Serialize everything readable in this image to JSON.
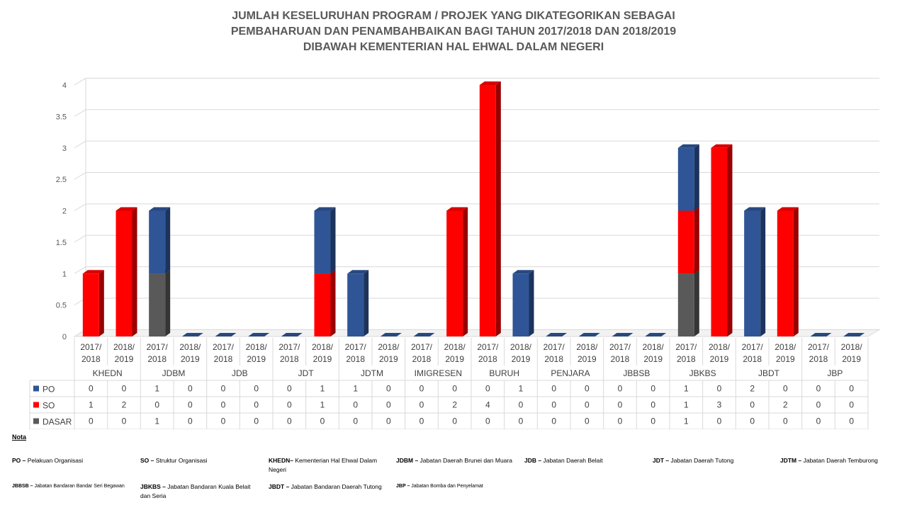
{
  "title_lines": [
    "JUMLAH KESELURUHAN PROGRAM / PROJEK YANG DIKATEGORIKAN SEBAGAI",
    "PEMBAHARUAN DAN PENAMBAHBAIKAN BAGI TAHUN 2017/2018 DAN 2018/2019",
    "DIBAWAH KEMENTERIAN HAL EHWAL DALAM NEGERI"
  ],
  "chart_data": {
    "type": "bar",
    "stacked": true,
    "three_d": true,
    "title": "JUMLAH KESELURUHAN PROGRAM / PROJEK YANG DIKATEGORIKAN SEBAGAI PEMBAHARUAN DAN PENAMBAHBAIKAN BAGI TAHUN 2017/2018 DAN 2018/2019 DIBAWAH KEMENTERIAN HAL EHWAL DALAM NEGERI",
    "groups": [
      "KHEDN",
      "JDBM",
      "JDB",
      "JDT",
      "JDTM",
      "IMIGRESEN",
      "BURUH",
      "PENJARA",
      "JBBSB",
      "JBKBS",
      "JBDT",
      "JBP"
    ],
    "subcategories": [
      "2017/2018",
      "2018/2019"
    ],
    "ylim": [
      0,
      4
    ],
    "yticks": [
      "0",
      "0.5",
      "1",
      "1.5",
      "2",
      "2.5",
      "3",
      "3.5",
      "4"
    ],
    "grid": true,
    "legend": "data-table",
    "series": [
      {
        "name": "PO",
        "color": "#2f5597",
        "values": [
          0,
          0,
          1,
          0,
          0,
          0,
          0,
          1,
          1,
          0,
          0,
          0,
          0,
          1,
          0,
          0,
          0,
          0,
          1,
          0,
          2,
          0,
          0,
          0
        ]
      },
      {
        "name": "SO",
        "color": "#ff0000",
        "values": [
          1,
          2,
          0,
          0,
          0,
          0,
          0,
          1,
          0,
          0,
          0,
          2,
          4,
          0,
          0,
          0,
          0,
          0,
          1,
          3,
          0,
          2,
          0,
          0
        ]
      },
      {
        "name": "DASAR",
        "color": "#595959",
        "values": [
          0,
          0,
          1,
          0,
          0,
          0,
          0,
          0,
          0,
          0,
          0,
          0,
          0,
          0,
          0,
          0,
          0,
          0,
          1,
          0,
          0,
          0,
          0,
          0
        ]
      }
    ],
    "stack_order": [
      "DASAR",
      "SO",
      "PO"
    ]
  },
  "notes": {
    "heading": "Nota",
    "items": [
      {
        "abbr": "PO",
        "sep": " – ",
        "text": "Pelakuan Organisasi"
      },
      {
        "abbr": "SO",
        "sep": " – ",
        "text": "Struktur Organisasi"
      },
      {
        "abbr": "KHEDN",
        "sep": "– ",
        "text": "Kementerian Hal Ehwal Dalam Negeri"
      },
      {
        "abbr": "JDBM",
        "sep": " – ",
        "text": "Jabatan Daerah Brunei dan Muara"
      },
      {
        "abbr": "JDB",
        "sep": " – ",
        "text": "Jabatan Daerah Belait"
      },
      {
        "abbr": "JDT",
        "sep": " – ",
        "text": "Jabatan Daerah Tutong"
      },
      {
        "abbr": "JDTM",
        "sep": " – ",
        "text": "Jabatan Daerah Temburong"
      },
      {
        "abbr": "JBBSB",
        "sep": " – ",
        "text": "Jabatan Bandaran Bandar Seri Begawan"
      },
      {
        "abbr": "JBKBS",
        "sep": " – ",
        "text": "Jabatan Bandaran Kuala Belait dan Seria"
      },
      {
        "abbr": "JBDT",
        "sep": " – ",
        "text": "Jabatan Bandaran Daerah Tutong"
      },
      {
        "abbr": "JBP",
        "sep": " – ",
        "text": "Jabatan Bomba dan Penyelamat"
      }
    ]
  }
}
